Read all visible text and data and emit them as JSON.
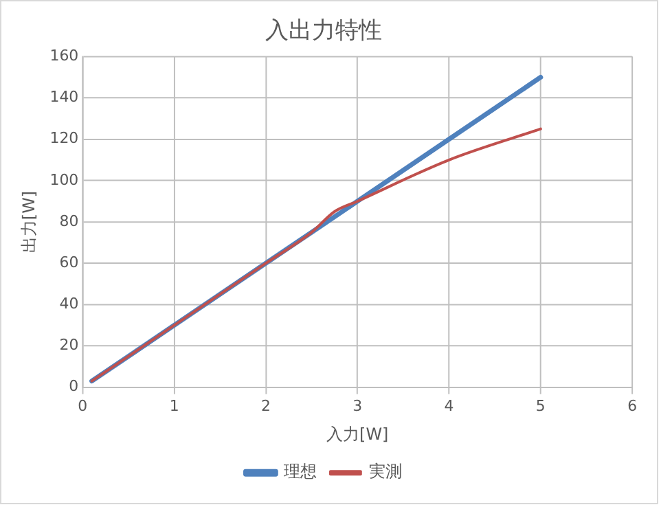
{
  "chart_data": {
    "type": "line",
    "title": "入出力特性",
    "xlabel": "入力[W]",
    "ylabel": "出力[W]",
    "series": [
      {
        "name": "理想",
        "color": "#4f81bd",
        "x": [
          0.1,
          1,
          2,
          3,
          4,
          5
        ],
        "values": [
          3,
          30,
          60,
          90,
          120,
          150
        ]
      },
      {
        "name": "実測",
        "color": "#c0504d",
        "x": [
          0.1,
          1,
          2,
          2.5,
          2.75,
          3,
          4,
          5
        ],
        "values": [
          3,
          30,
          60,
          75,
          85,
          90,
          110,
          125
        ]
      }
    ],
    "xlim": [
      0,
      6
    ],
    "xticks": [
      0,
      1,
      2,
      3,
      4,
      5,
      6
    ],
    "ylim": [
      0,
      160
    ],
    "yticks": [
      0,
      20,
      40,
      60,
      80,
      100,
      120,
      140,
      160
    ],
    "grid": true,
    "legend": "bottom",
    "marker": "none",
    "line_style": "solid"
  }
}
